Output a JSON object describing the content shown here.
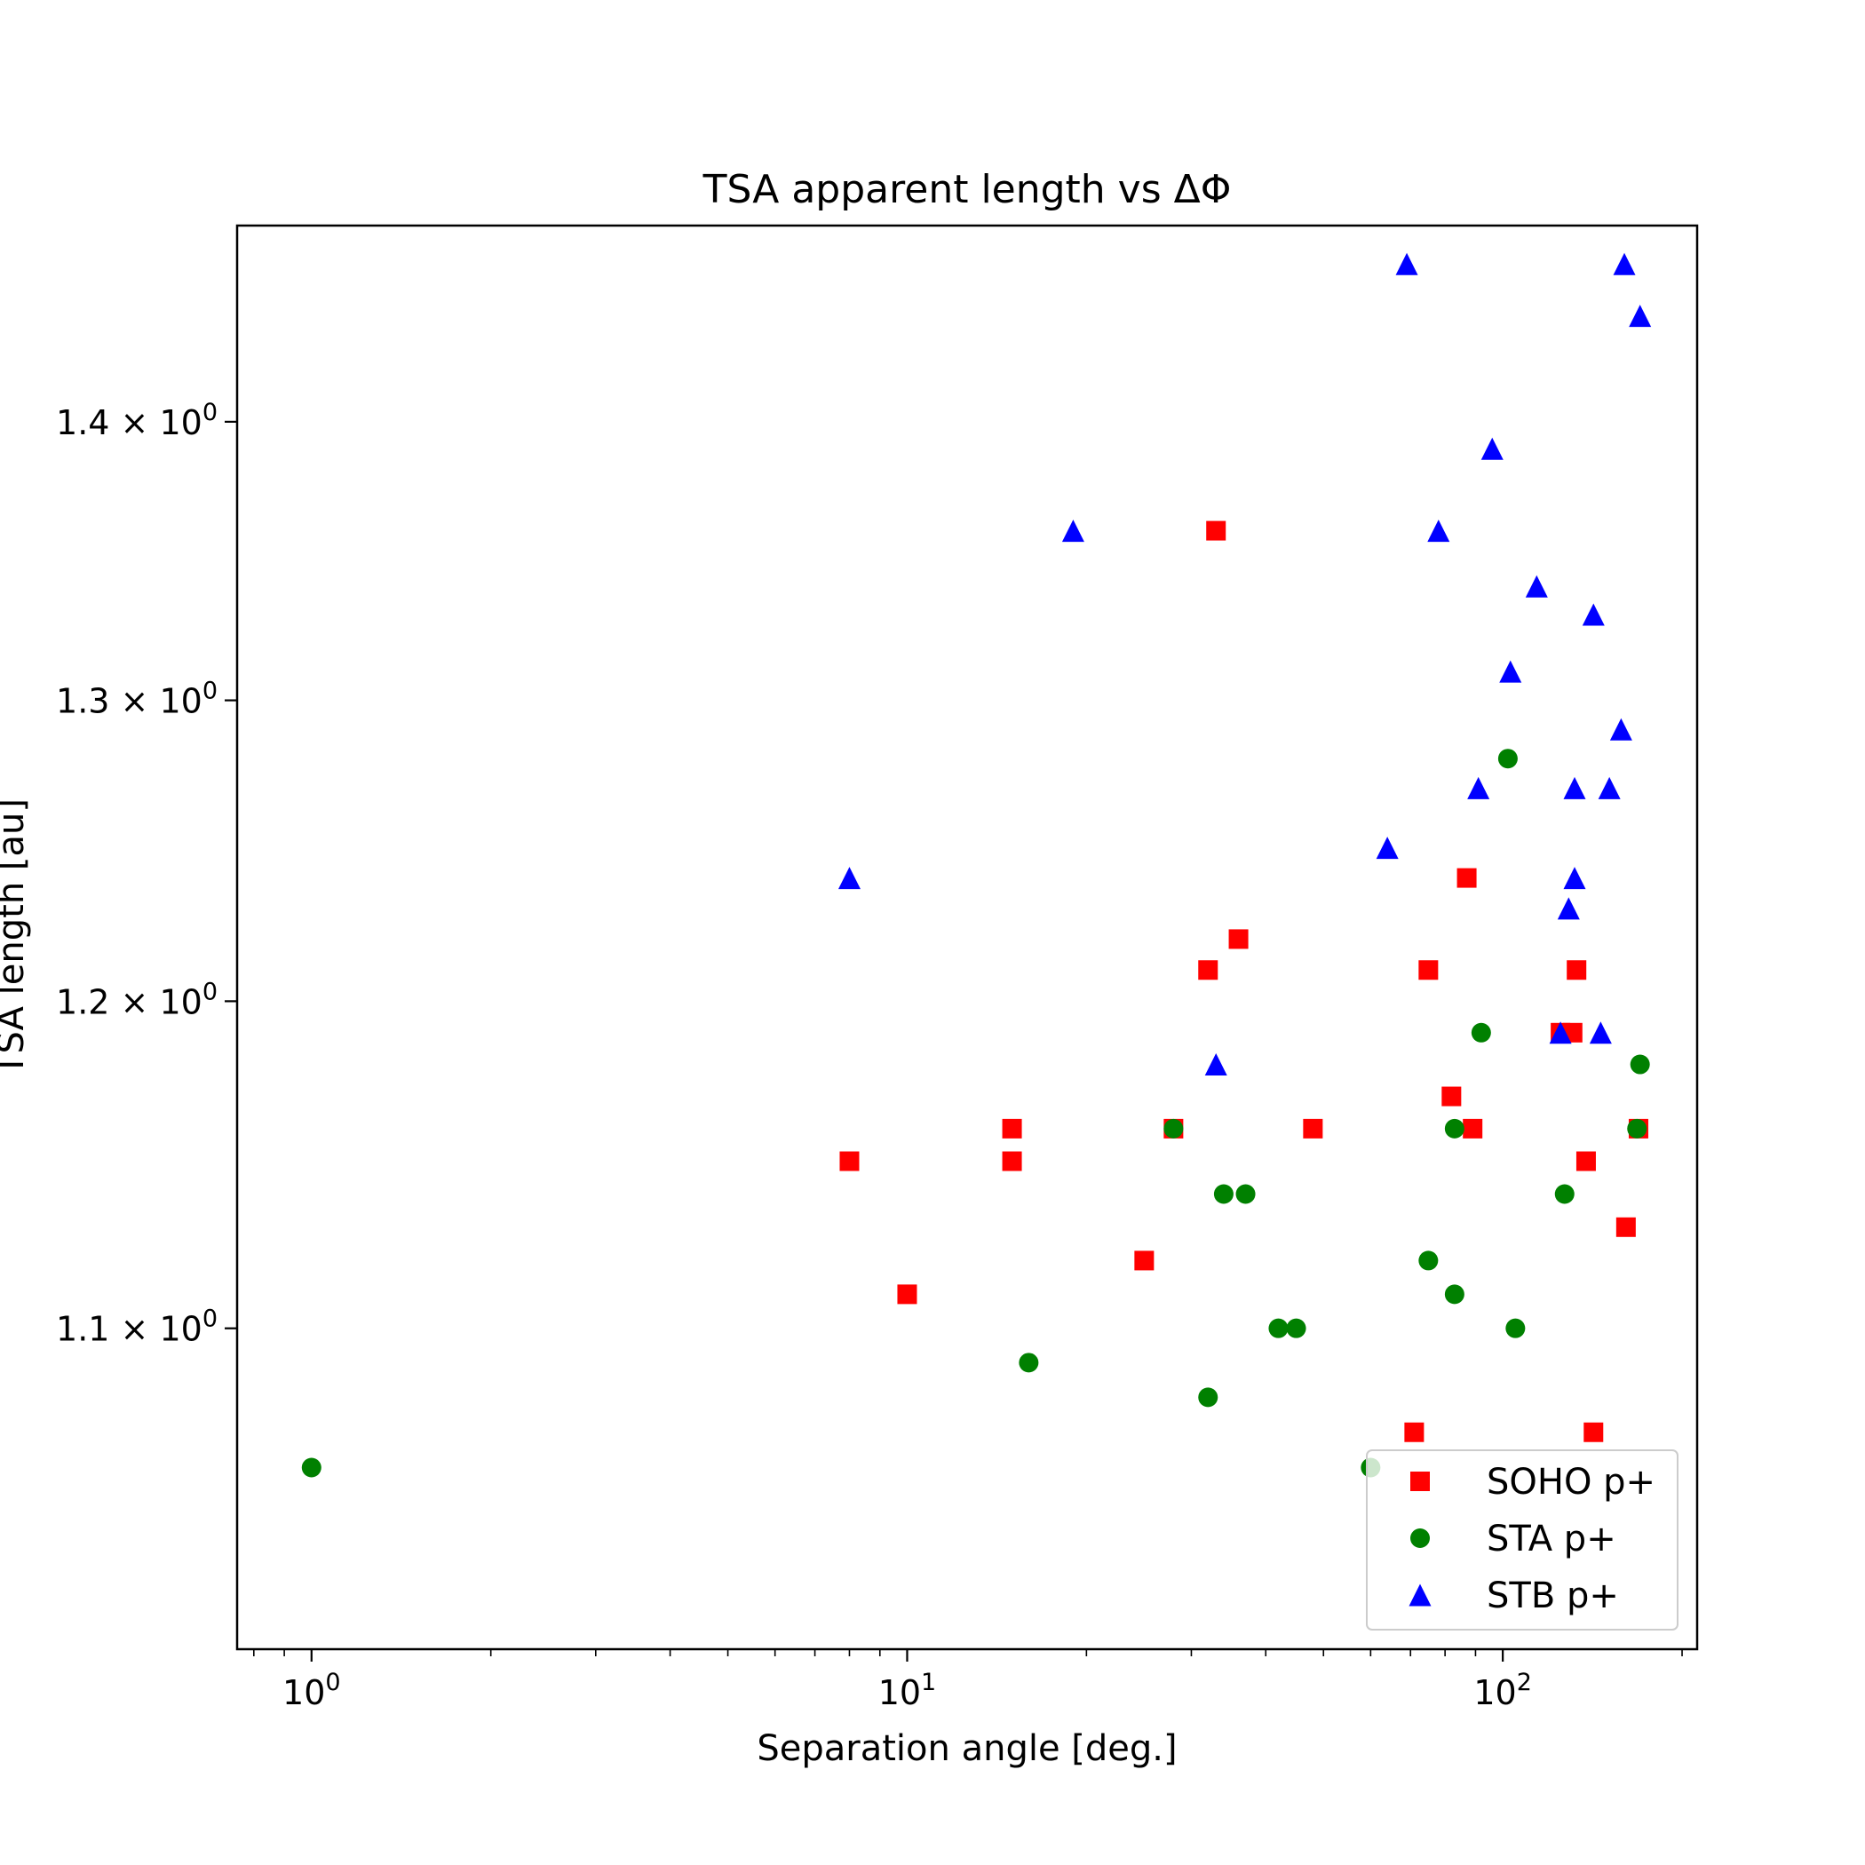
{
  "chart_data": {
    "type": "scatter",
    "title": "TSA apparent length vs ΔΦ",
    "xlabel": "Separation angle [deg.]",
    "ylabel": "TSA length [au]",
    "x_scale": "log",
    "y_scale": "log",
    "xlim": [
      0.75,
      212
    ],
    "ylim": [
      1.01,
      1.475
    ],
    "x_ticks": [
      {
        "value": 1,
        "base": "10",
        "exp": "0"
      },
      {
        "value": 10,
        "base": "10",
        "exp": "1"
      },
      {
        "value": 100,
        "base": "10",
        "exp": "2"
      }
    ],
    "y_ticks": [
      {
        "value": 1.1,
        "mant": "1.1",
        "base": "10",
        "exp": "0"
      },
      {
        "value": 1.2,
        "mant": "1.2",
        "base": "10",
        "exp": "0"
      },
      {
        "value": 1.3,
        "mant": "1.3",
        "base": "10",
        "exp": "0"
      },
      {
        "value": 1.4,
        "mant": "1.4",
        "base": "10",
        "exp": "0"
      }
    ],
    "grid": false,
    "legend_position": "bottom-right",
    "series": [
      {
        "name": "SOHO p+",
        "marker": "square",
        "color": "#ff0000",
        "points": [
          [
            8,
            1.15
          ],
          [
            10,
            1.11
          ],
          [
            15,
            1.16
          ],
          [
            15,
            1.15
          ],
          [
            25,
            1.12
          ],
          [
            28,
            1.16
          ],
          [
            32,
            1.21
          ],
          [
            33,
            1.36
          ],
          [
            36,
            1.22
          ],
          [
            48,
            1.16
          ],
          [
            71,
            1.07
          ],
          [
            75,
            1.21
          ],
          [
            82,
            1.17
          ],
          [
            87,
            1.24
          ],
          [
            89,
            1.16
          ],
          [
            125,
            1.19
          ],
          [
            131,
            1.19
          ],
          [
            133,
            1.21
          ],
          [
            138,
            1.15
          ],
          [
            142,
            1.07
          ],
          [
            161,
            1.13
          ],
          [
            169,
            1.16
          ]
        ]
      },
      {
        "name": "STA p+",
        "marker": "circle",
        "color": "#008000",
        "points": [
          [
            1,
            1.06
          ],
          [
            16,
            1.09
          ],
          [
            28,
            1.16
          ],
          [
            32,
            1.08
          ],
          [
            34,
            1.14
          ],
          [
            37,
            1.14
          ],
          [
            42,
            1.1
          ],
          [
            45,
            1.1
          ],
          [
            60,
            1.06
          ],
          [
            75,
            1.12
          ],
          [
            83,
            1.11
          ],
          [
            83,
            1.16
          ],
          [
            92,
            1.19
          ],
          [
            102,
            1.28
          ],
          [
            105,
            1.1
          ],
          [
            127,
            1.14
          ],
          [
            168,
            1.16
          ],
          [
            170,
            1.18
          ]
        ]
      },
      {
        "name": "STB p+",
        "marker": "triangle",
        "color": "#0000ff",
        "points": [
          [
            8,
            1.24
          ],
          [
            19,
            1.36
          ],
          [
            33,
            1.18
          ],
          [
            64,
            1.25
          ],
          [
            69,
            1.46
          ],
          [
            78,
            1.36
          ],
          [
            91,
            1.27
          ],
          [
            96,
            1.39
          ],
          [
            103,
            1.31
          ],
          [
            114,
            1.34
          ],
          [
            125,
            1.19
          ],
          [
            129,
            1.23
          ],
          [
            132,
            1.24
          ],
          [
            132,
            1.27
          ],
          [
            142,
            1.33
          ],
          [
            146,
            1.19
          ],
          [
            151,
            1.27
          ],
          [
            158,
            1.29
          ],
          [
            160,
            1.46
          ],
          [
            170,
            1.44
          ]
        ]
      }
    ]
  }
}
